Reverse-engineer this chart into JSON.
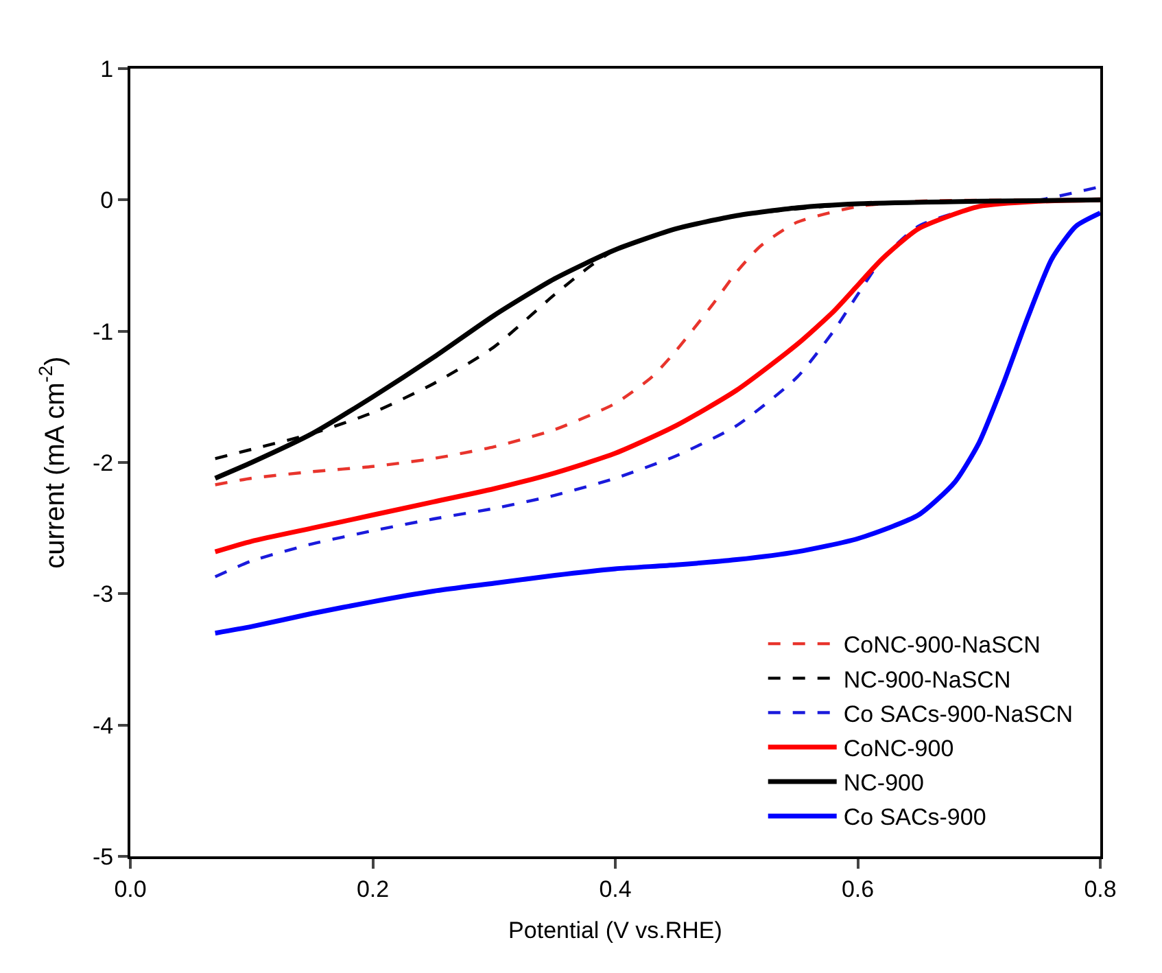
{
  "chart_data": {
    "type": "line",
    "xlabel": "Potential (V vs.RHE)",
    "ylabel": "current (mA cm$^{-2}$)",
    "xlim": [
      0,
      0.8
    ],
    "ylim": [
      -5,
      1
    ],
    "xticks": [
      {
        "value": 0,
        "label": "0.0"
      },
      0.2,
      0.4,
      0.6,
      0.8
    ],
    "yticks": [
      -5,
      -4,
      -3,
      -2,
      -1,
      0,
      1
    ],
    "legend": "bottom right",
    "marker": "none",
    "series": [
      {
        "name": "CoNC-900-NaSCN",
        "color": "#e8342c",
        "line_style": "dashed",
        "x": [
          0.07,
          0.1,
          0.15,
          0.2,
          0.25,
          0.3,
          0.35,
          0.4,
          0.43,
          0.45,
          0.48,
          0.5,
          0.52,
          0.55,
          0.6,
          0.65,
          0.8
        ],
        "values": [
          -2.17,
          -2.12,
          -2.07,
          -2.03,
          -1.97,
          -1.88,
          -1.75,
          -1.55,
          -1.35,
          -1.15,
          -0.8,
          -0.55,
          -0.35,
          -0.17,
          -0.05,
          -0.01,
          0
        ]
      },
      {
        "name": "NC-900-NaSCN",
        "color": "#000000",
        "line_style": "dashed",
        "x": [
          0.07,
          0.1,
          0.15,
          0.2,
          0.25,
          0.3,
          0.35,
          0.38,
          0.4,
          0.45,
          0.5,
          0.6,
          0.8
        ],
        "values": [
          -1.97,
          -1.9,
          -1.78,
          -1.62,
          -1.4,
          -1.12,
          -0.72,
          -0.5,
          -0.38,
          -0.22,
          -0.12,
          -0.03,
          0
        ]
      },
      {
        "name": "Co SACs-900-NaSCN",
        "color": "#1a1adc",
        "line_style": "dashed",
        "x": [
          0.07,
          0.1,
          0.15,
          0.2,
          0.25,
          0.3,
          0.35,
          0.4,
          0.45,
          0.5,
          0.55,
          0.58,
          0.6,
          0.62,
          0.65,
          0.7,
          0.75,
          0.8
        ],
        "values": [
          -2.87,
          -2.75,
          -2.62,
          -2.52,
          -2.43,
          -2.35,
          -2.25,
          -2.12,
          -1.95,
          -1.72,
          -1.35,
          -1.0,
          -0.72,
          -0.45,
          -0.2,
          -0.05,
          0,
          0.1
        ]
      },
      {
        "name": "CoNC-900",
        "color": "#ff0000",
        "line_style": "solid",
        "x": [
          0.07,
          0.1,
          0.15,
          0.2,
          0.25,
          0.3,
          0.35,
          0.4,
          0.45,
          0.5,
          0.55,
          0.58,
          0.6,
          0.62,
          0.65,
          0.7,
          0.75,
          0.8
        ],
        "values": [
          -2.68,
          -2.6,
          -2.5,
          -2.4,
          -2.3,
          -2.2,
          -2.08,
          -1.93,
          -1.72,
          -1.45,
          -1.1,
          -0.85,
          -0.65,
          -0.45,
          -0.22,
          -0.05,
          -0.01,
          0
        ]
      },
      {
        "name": "NC-900",
        "color": "#000000",
        "line_style": "solid",
        "x": [
          0.07,
          0.1,
          0.15,
          0.2,
          0.25,
          0.3,
          0.35,
          0.4,
          0.45,
          0.5,
          0.55,
          0.6,
          0.7,
          0.8
        ],
        "values": [
          -2.12,
          -2.0,
          -1.78,
          -1.5,
          -1.2,
          -0.88,
          -0.6,
          -0.38,
          -0.22,
          -0.12,
          -0.06,
          -0.03,
          -0.01,
          0
        ]
      },
      {
        "name": "Co SACs-900",
        "color": "#0000ff",
        "line_style": "solid",
        "x": [
          0.07,
          0.1,
          0.15,
          0.2,
          0.25,
          0.3,
          0.35,
          0.4,
          0.45,
          0.5,
          0.55,
          0.6,
          0.65,
          0.68,
          0.7,
          0.72,
          0.74,
          0.76,
          0.78,
          0.8
        ],
        "values": [
          -3.3,
          -3.25,
          -3.15,
          -3.06,
          -2.98,
          -2.92,
          -2.86,
          -2.81,
          -2.78,
          -2.74,
          -2.68,
          -2.58,
          -2.4,
          -2.15,
          -1.85,
          -1.4,
          -0.9,
          -0.45,
          -0.2,
          -0.1
        ]
      }
    ]
  }
}
